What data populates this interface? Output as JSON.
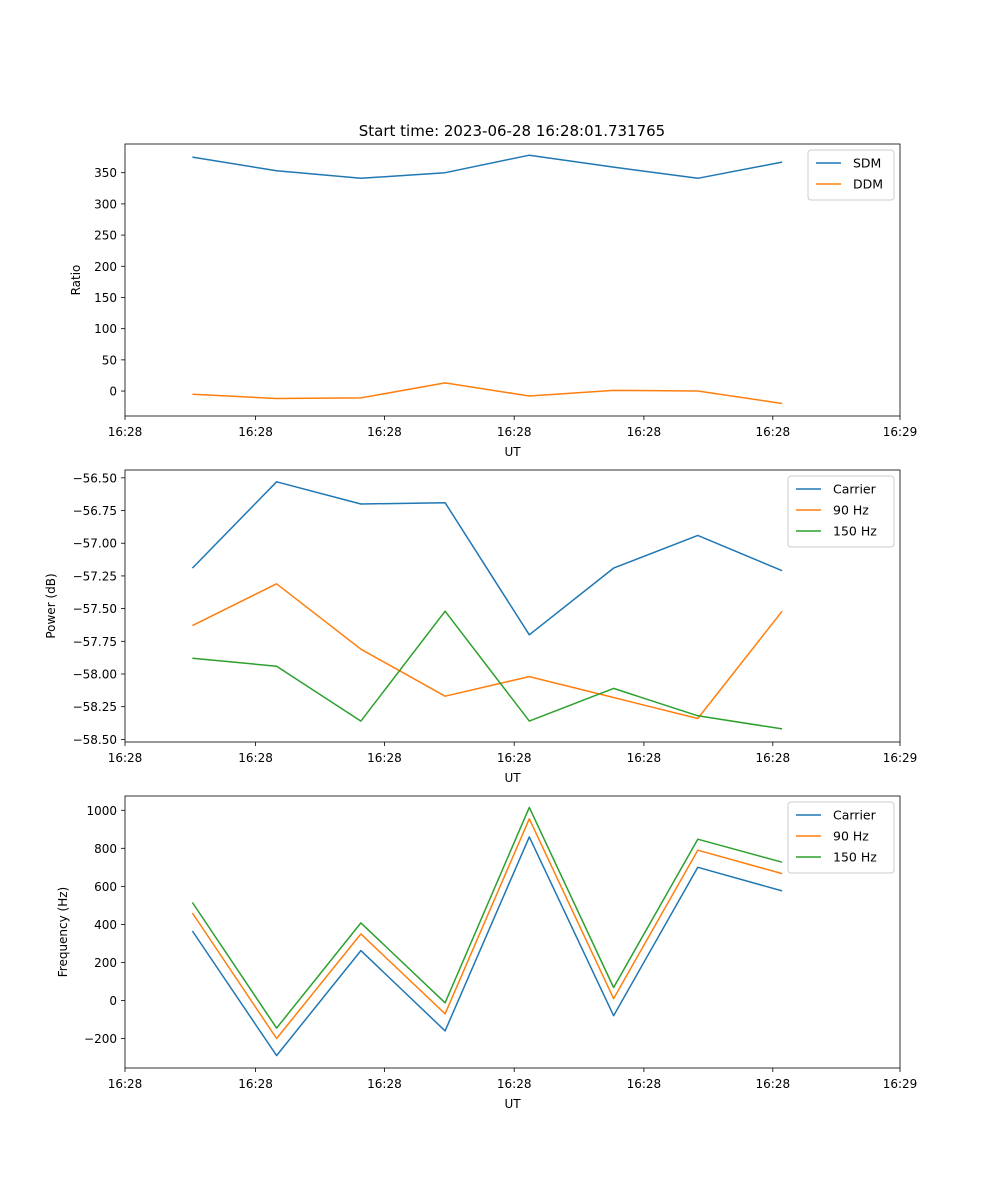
{
  "figure": {
    "title": "Start time: 2023-06-28 16:28:01.731765"
  },
  "chart_data": [
    {
      "type": "line",
      "title": "Start time: 2023-06-28 16:28:01.731765",
      "xlabel": "UT",
      "ylabel": "Ratio",
      "x": [
        1,
        2,
        3,
        4,
        5,
        6,
        7,
        8
      ],
      "xlim": [
        0.2,
        9.4
      ],
      "xticks": [
        0.2,
        1.75,
        3.28,
        4.82,
        6.36,
        7.89,
        9.4
      ],
      "xtick_labels": [
        "16:28",
        "16:28",
        "16:28",
        "16:28",
        "16:28",
        "16:28",
        "16:29"
      ],
      "ylim": [
        -40,
        396
      ],
      "yticks": [
        0,
        50,
        100,
        150,
        200,
        250,
        300,
        350
      ],
      "ytick_labels": [
        "0",
        "50",
        "100",
        "150",
        "200",
        "250",
        "300",
        "350"
      ],
      "legend": "top-right",
      "grid": false,
      "series": [
        {
          "name": "SDM",
          "color": "#1f77b4",
          "values": [
            375,
            353,
            341,
            350,
            378,
            359,
            341,
            367
          ]
        },
        {
          "name": "DDM",
          "color": "#ff7f0e",
          "values": [
            -5,
            -12,
            -11,
            13,
            -8,
            1,
            0,
            -20
          ]
        }
      ]
    },
    {
      "type": "line",
      "xlabel": "UT",
      "ylabel": "Power (dB)",
      "x": [
        1,
        2,
        3,
        4,
        5,
        6,
        7,
        8
      ],
      "xlim": [
        0.2,
        9.4
      ],
      "xticks": [
        0.2,
        1.75,
        3.28,
        4.82,
        6.36,
        7.89,
        9.4
      ],
      "xtick_labels": [
        "16:28",
        "16:28",
        "16:28",
        "16:28",
        "16:28",
        "16:28",
        "16:29"
      ],
      "ylim": [
        -58.52,
        -56.44
      ],
      "yticks": [
        -58.5,
        -58.25,
        -58.0,
        -57.75,
        -57.5,
        -57.25,
        -57.0,
        -56.75,
        -56.5
      ],
      "ytick_labels": [
        "−58.50",
        "−58.25",
        "−58.00",
        "−57.75",
        "−57.50",
        "−57.25",
        "−57.00",
        "−56.75",
        "−56.50"
      ],
      "legend": "top-right",
      "grid": false,
      "series": [
        {
          "name": "Carrier",
          "color": "#1f77b4",
          "values": [
            -57.19,
            -56.53,
            -56.7,
            -56.69,
            -57.7,
            -57.19,
            -56.94,
            -57.21
          ]
        },
        {
          "name": "90 Hz",
          "color": "#ff7f0e",
          "values": [
            -57.63,
            -57.31,
            -57.81,
            -58.17,
            -58.02,
            -58.18,
            -58.34,
            -57.52
          ]
        },
        {
          "name": "150 Hz",
          "color": "#2ca02c",
          "values": [
            -57.88,
            -57.94,
            -58.36,
            -57.52,
            -58.36,
            -58.11,
            -58.32,
            -58.42
          ]
        }
      ]
    },
    {
      "type": "line",
      "xlabel": "UT",
      "ylabel": "Frequency (Hz)",
      "x": [
        1,
        2,
        3,
        4,
        5,
        6,
        7,
        8
      ],
      "xlim": [
        0.2,
        9.4
      ],
      "xticks": [
        0.2,
        1.75,
        3.28,
        4.82,
        6.36,
        7.89,
        9.4
      ],
      "xtick_labels": [
        "16:28",
        "16:28",
        "16:28",
        "16:28",
        "16:28",
        "16:28",
        "16:29"
      ],
      "ylim": [
        -355,
        1075
      ],
      "yticks": [
        -200,
        0,
        200,
        400,
        600,
        800,
        1000
      ],
      "ytick_labels": [
        "−200",
        "0",
        "200",
        "400",
        "600",
        "800",
        "1000"
      ],
      "legend": "top-right",
      "grid": false,
      "series": [
        {
          "name": "Carrier",
          "color": "#1f77b4",
          "values": [
            365,
            -290,
            262,
            -160,
            860,
            -80,
            700,
            576
          ]
        },
        {
          "name": "90 Hz",
          "color": "#ff7f0e",
          "values": [
            460,
            -200,
            350,
            -70,
            955,
            10,
            790,
            667
          ]
        },
        {
          "name": "150 Hz",
          "color": "#2ca02c",
          "values": [
            515,
            -145,
            408,
            -12,
            1015,
            68,
            848,
            727
          ]
        }
      ]
    }
  ]
}
